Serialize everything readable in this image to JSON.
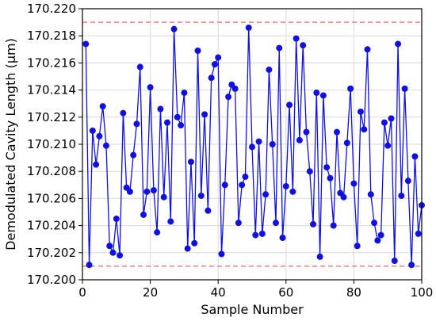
{
  "chart_data": {
    "type": "line",
    "xlabel": "Sample Number",
    "ylabel": "Demodulated Cavity Length (μm)",
    "xlim": [
      0,
      100
    ],
    "ylim": [
      170.2,
      170.22
    ],
    "x_ticks": [
      "0",
      "20",
      "40",
      "60",
      "80",
      "100"
    ],
    "y_ticks": [
      "170.200",
      "170.202",
      "170.204",
      "170.206",
      "170.208",
      "170.210",
      "170.212",
      "170.214",
      "170.216",
      "170.218",
      "170.220"
    ],
    "grid": true,
    "reference_lines": [
      {
        "y": 170.219,
        "style": "dashed",
        "color": "#e06666"
      },
      {
        "y": 170.201,
        "style": "dashed",
        "color": "#e06666"
      }
    ],
    "series": [
      {
        "color": "#1010e0",
        "marker": "circle",
        "x": [
          1,
          2,
          3,
          4,
          5,
          6,
          7,
          8,
          9,
          10,
          11,
          12,
          13,
          14,
          15,
          16,
          17,
          18,
          19,
          20,
          21,
          22,
          23,
          24,
          25,
          26,
          27,
          28,
          29,
          30,
          31,
          32,
          33,
          34,
          35,
          36,
          37,
          38,
          39,
          40,
          41,
          42,
          43,
          44,
          45,
          46,
          47,
          48,
          49,
          50,
          51,
          52,
          53,
          54,
          55,
          56,
          57,
          58,
          59,
          60,
          61,
          62,
          63,
          64,
          65,
          66,
          67,
          68,
          69,
          70,
          71,
          72,
          73,
          74,
          75,
          76,
          77,
          78,
          79,
          80,
          81,
          82,
          83,
          84,
          85,
          86,
          87,
          88,
          89,
          90,
          91,
          92,
          93,
          94,
          95,
          96,
          97,
          98,
          99,
          100
        ],
        "values": [
          170.2174,
          170.2011,
          170.211,
          170.2085,
          170.2106,
          170.2128,
          170.2099,
          170.2025,
          170.202,
          170.2045,
          170.2018,
          170.2123,
          170.2068,
          170.2065,
          170.2092,
          170.2115,
          170.2157,
          170.2048,
          170.2065,
          170.2142,
          170.2066,
          170.2035,
          170.2126,
          170.2061,
          170.2116,
          170.2043,
          170.2185,
          170.212,
          170.2114,
          170.2138,
          170.2023,
          170.2087,
          170.2027,
          170.2169,
          170.2062,
          170.2122,
          170.2051,
          170.2149,
          170.2159,
          170.2164,
          170.2019,
          170.207,
          170.2135,
          170.2144,
          170.2141,
          170.2042,
          170.207,
          170.2076,
          170.2186,
          170.2098,
          170.2033,
          170.2102,
          170.2034,
          170.2063,
          170.2155,
          170.21,
          170.2042,
          170.2171,
          170.2031,
          170.2069,
          170.2129,
          170.2065,
          170.2178,
          170.2103,
          170.2173,
          170.2109,
          170.208,
          170.2041,
          170.2138,
          170.2017,
          170.2136,
          170.2083,
          170.2075,
          170.204,
          170.2109,
          170.2064,
          170.2061,
          170.2101,
          170.2141,
          170.2071,
          170.2025,
          170.2124,
          170.2111,
          170.217,
          170.2063,
          170.2042,
          170.2029,
          170.2033,
          170.2116,
          170.2099,
          170.2119,
          170.2014,
          170.2174,
          170.2062,
          170.2141,
          170.2073,
          170.2011,
          170.2091,
          170.2034,
          170.2055
        ]
      }
    ]
  }
}
